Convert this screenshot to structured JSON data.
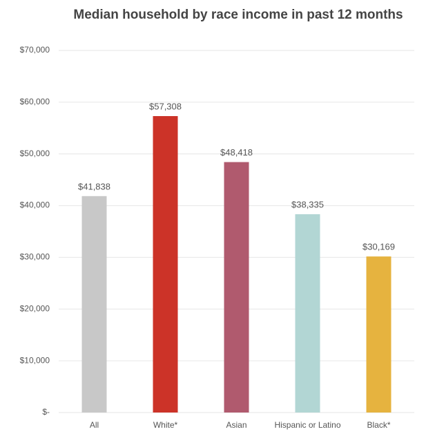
{
  "chart_data": {
    "type": "bar",
    "title": "Median household by race income in past 12 months",
    "categories": [
      "All",
      "White*",
      "Asian",
      "Hispanic or Latino",
      "Black*"
    ],
    "values": [
      41838,
      57308,
      48418,
      38335,
      30169
    ],
    "value_labels": [
      "$41,838",
      "$57,308",
      "$48,418",
      "$38,335",
      "$30,169"
    ],
    "colors": [
      "#c8c8c8",
      "#cc3328",
      "#b05a6e",
      "#b2d6d4",
      "#e6b33f"
    ],
    "ylim": [
      0,
      70000
    ],
    "yticks": [
      {
        "value": 0,
        "label": "$-"
      },
      {
        "value": 10000,
        "label": "$10,000"
      },
      {
        "value": 20000,
        "label": "$20,000"
      },
      {
        "value": 30000,
        "label": "$30,000"
      },
      {
        "value": 40000,
        "label": "$40,000"
      },
      {
        "value": 50000,
        "label": "$50,000"
      },
      {
        "value": 60000,
        "label": "$60,000"
      },
      {
        "value": 70000,
        "label": "$70,000"
      }
    ],
    "grid": true
  }
}
